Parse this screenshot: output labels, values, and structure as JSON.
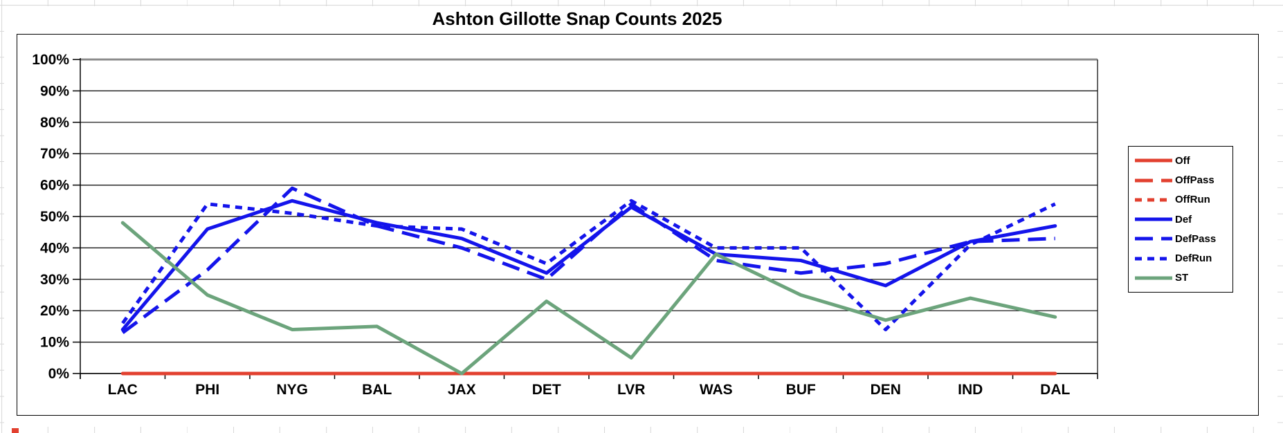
{
  "chart_data": {
    "type": "line",
    "title": "Ashton Gillotte Snap Counts 2025",
    "categories": [
      "LAC",
      "PHI",
      "NYG",
      "BAL",
      "JAX",
      "DET",
      "LVR",
      "WAS",
      "BUF",
      "DEN",
      "IND",
      "DAL"
    ],
    "series": [
      {
        "name": "Off",
        "color": "#e2402f",
        "dash": "solid",
        "values": [
          0,
          0,
          0,
          0,
          0,
          0,
          0,
          0,
          0,
          0,
          0,
          0
        ]
      },
      {
        "name": "OffPass",
        "color": "#e2402f",
        "dash": "long",
        "values": [
          0,
          0,
          0,
          0,
          0,
          0,
          0,
          0,
          0,
          0,
          0,
          0
        ]
      },
      {
        "name": "OffRun",
        "color": "#e2402f",
        "dash": "short",
        "values": [
          0,
          0,
          0,
          0,
          0,
          0,
          0,
          0,
          0,
          0,
          0,
          0
        ]
      },
      {
        "name": "Def",
        "color": "#1414eb",
        "dash": "solid",
        "values": [
          14,
          46,
          55,
          48,
          43,
          32,
          53,
          38,
          36,
          28,
          42,
          47
        ]
      },
      {
        "name": "DefPass",
        "color": "#1414eb",
        "dash": "long",
        "values": [
          13,
          33,
          59,
          47,
          40,
          30,
          54,
          36,
          32,
          35,
          42,
          43
        ]
      },
      {
        "name": "DefRun",
        "color": "#1414eb",
        "dash": "short",
        "values": [
          16,
          54,
          51,
          47,
          46,
          35,
          55,
          40,
          40,
          14,
          41,
          54
        ]
      },
      {
        "name": "ST",
        "color": "#6ca47c",
        "dash": "solid",
        "values": [
          48,
          25,
          14,
          15,
          0,
          23,
          5,
          38,
          25,
          17,
          24,
          18
        ]
      }
    ],
    "ylim": [
      0,
      100
    ],
    "ytick_step": 10,
    "ytick_labels": [
      "0%",
      "10%",
      "20%",
      "30%",
      "40%",
      "50%",
      "60%",
      "70%",
      "80%",
      "90%",
      "100%"
    ],
    "xlabel": "",
    "ylabel": "",
    "grid": true,
    "legend_position": "right"
  }
}
